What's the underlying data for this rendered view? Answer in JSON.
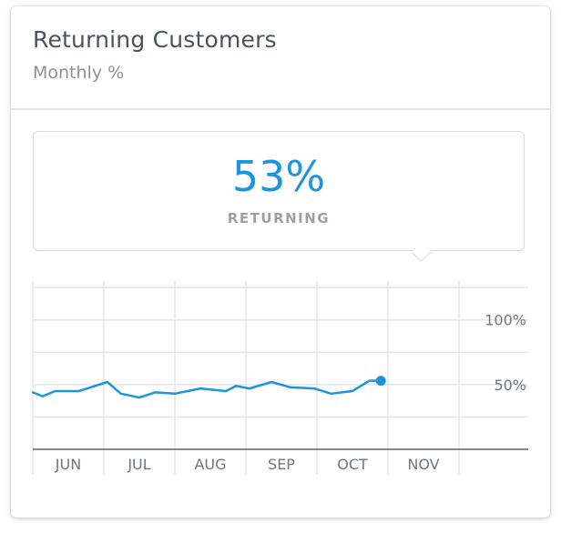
{
  "card": {
    "title": "Returning Customers",
    "subtitle": "Monthly %"
  },
  "tooltip": {
    "value": "53%",
    "label": "RETURNING"
  },
  "chart_data": {
    "type": "line",
    "title": "Returning Customers",
    "subtitle": "Monthly %",
    "categories": [
      "JUN",
      "JUL",
      "AUG",
      "SEP",
      "OCT",
      "NOV"
    ],
    "y_tick_labels": [
      "100%",
      "50%"
    ],
    "y_ticks": [
      100,
      50
    ],
    "ylim": [
      0,
      130
    ],
    "grid": true,
    "x": [
      0.0,
      0.14,
      0.31,
      0.65,
      1.05,
      1.24,
      1.5,
      1.72,
      2.0,
      2.36,
      2.72,
      2.86,
      3.05,
      3.36,
      3.62,
      3.96,
      4.2,
      4.5,
      4.74,
      4.9
    ],
    "series": [
      {
        "values": [
          44,
          41,
          45,
          45,
          52,
          43,
          40,
          44,
          43,
          47,
          45,
          49,
          47,
          52,
          48,
          47,
          43,
          45,
          53,
          53
        ],
        "color": "#1b95e0"
      }
    ],
    "highlight": {
      "x": 4.9,
      "value": 53
    }
  }
}
